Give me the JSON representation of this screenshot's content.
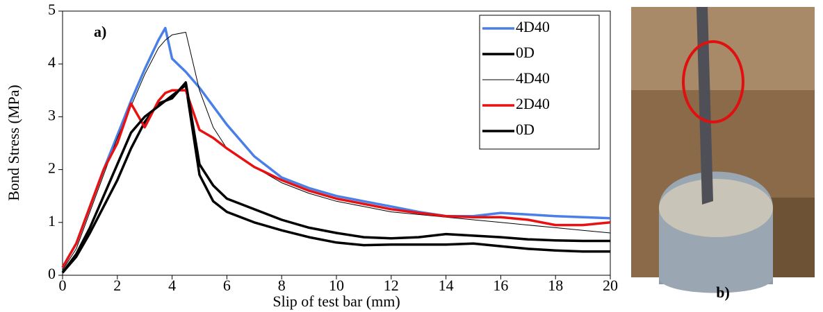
{
  "chart_data": {
    "type": "line",
    "panel_label": "a)",
    "xlabel": "Slip of test bar (mm)",
    "ylabel": "Bond Stress (MPa)",
    "x": [
      0,
      0.5,
      1,
      1.5,
      2,
      2.5,
      3,
      3.5,
      3.75,
      4,
      4.5,
      5,
      5.5,
      6,
      7,
      8,
      9,
      10,
      11,
      12,
      13,
      14,
      15,
      16,
      17,
      18,
      19,
      20
    ],
    "series": [
      {
        "name": "4D40",
        "color": "#4a7fe8",
        "line_width": 3.5,
        "values": [
          0.15,
          0.6,
          1.3,
          2.0,
          2.65,
          3.3,
          3.9,
          4.45,
          4.68,
          4.1,
          3.85,
          3.55,
          3.2,
          2.85,
          2.25,
          1.85,
          1.65,
          1.5,
          1.4,
          1.3,
          1.2,
          1.12,
          1.12,
          1.18,
          1.15,
          1.12,
          1.1,
          1.08
        ]
      },
      {
        "name": "0D",
        "color": "#000000",
        "line_width": 3.5,
        "values": [
          0.05,
          0.35,
          0.8,
          1.3,
          1.8,
          2.4,
          2.9,
          3.25,
          3.3,
          3.4,
          3.6,
          1.9,
          1.4,
          1.2,
          1.0,
          0.85,
          0.72,
          0.62,
          0.57,
          0.58,
          0.58,
          0.58,
          0.6,
          0.55,
          0.5,
          0.47,
          0.45,
          0.45
        ]
      },
      {
        "name": "4D40",
        "color": "#000000",
        "line_width": 1,
        "values": [
          0.1,
          0.5,
          1.2,
          1.9,
          2.6,
          3.2,
          3.8,
          4.3,
          4.45,
          4.55,
          4.6,
          3.5,
          2.8,
          2.4,
          2.05,
          1.75,
          1.55,
          1.4,
          1.3,
          1.2,
          1.15,
          1.1,
          1.05,
          1.0,
          0.95,
          0.9,
          0.85,
          0.8
        ]
      },
      {
        "name": "2D40",
        "color": "#e81010",
        "line_width": 3.5,
        "values": [
          0.15,
          0.6,
          1.3,
          2.0,
          2.5,
          3.25,
          2.8,
          3.3,
          3.45,
          3.5,
          3.5,
          2.75,
          2.6,
          2.4,
          2.05,
          1.8,
          1.6,
          1.45,
          1.35,
          1.25,
          1.18,
          1.12,
          1.1,
          1.1,
          1.05,
          0.95,
          0.95,
          1.0
        ]
      },
      {
        "name": "0D",
        "color": "#000000",
        "line_width": 3.5,
        "values": [
          0.05,
          0.4,
          0.9,
          1.5,
          2.1,
          2.7,
          3.0,
          3.2,
          3.3,
          3.35,
          3.65,
          2.1,
          1.7,
          1.45,
          1.25,
          1.05,
          0.9,
          0.8,
          0.72,
          0.7,
          0.72,
          0.78,
          0.75,
          0.72,
          0.68,
          0.66,
          0.65,
          0.65
        ]
      }
    ],
    "xlim": [
      0,
      20
    ],
    "xticks": [
      0,
      2,
      4,
      6,
      8,
      10,
      12,
      14,
      16,
      18,
      20
    ],
    "ylim": [
      0,
      5
    ],
    "yticks": [
      0,
      1,
      2,
      3,
      4,
      5
    ],
    "grid": false,
    "legend": "upper right"
  },
  "photo": {
    "label": "b)"
  }
}
